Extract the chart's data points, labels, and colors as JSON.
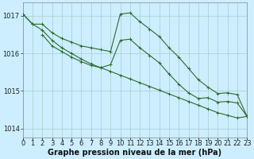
{
  "background_color": "#cceeff",
  "grid_color": "#aacccc",
  "line_color": "#2d6a2d",
  "xlabel": "Graphe pression niveau de la mer (hPa)",
  "xlabel_fontsize": 7,
  "tick_fontsize": 6,
  "ylabel_ticks": [
    1014,
    1015,
    1016,
    1017
  ],
  "xlim": [
    0,
    23
  ],
  "ylim": [
    1013.75,
    1017.35
  ],
  "line1_x": [
    0,
    1,
    2,
    3,
    4,
    5,
    6,
    7,
    8,
    9,
    10,
    11,
    12,
    13,
    14,
    15,
    16,
    17,
    18,
    19,
    20,
    21,
    22,
    23
  ],
  "line1_y": [
    1017.05,
    1016.78,
    1016.78,
    1016.55,
    1016.4,
    1016.3,
    1016.2,
    1016.15,
    1016.1,
    1016.05,
    1017.05,
    1017.08,
    1016.85,
    1016.65,
    1016.45,
    1016.15,
    1015.9,
    1015.6,
    1015.3,
    1015.1,
    1014.93,
    1014.95,
    1014.9,
    1014.32
  ],
  "line2_x": [
    2,
    3,
    4,
    5,
    6,
    7,
    8,
    9,
    10,
    11,
    12,
    13,
    14,
    15,
    16,
    17,
    18,
    19,
    20,
    21,
    22,
    23
  ],
  "line2_y": [
    1016.5,
    1016.2,
    1016.05,
    1015.9,
    1015.78,
    1015.68,
    1015.62,
    1015.7,
    1016.35,
    1016.38,
    1016.15,
    1015.95,
    1015.75,
    1015.45,
    1015.18,
    1014.95,
    1014.8,
    1014.82,
    1014.7,
    1014.72,
    1014.68,
    1014.32
  ],
  "line3_x": [
    0,
    1,
    2,
    3,
    4,
    5,
    6,
    7,
    8,
    9,
    10,
    11,
    12,
    13,
    14,
    15,
    16,
    17,
    18,
    19,
    20,
    21,
    22,
    23
  ],
  "line3_y": [
    1017.05,
    1016.78,
    1016.62,
    1016.35,
    1016.15,
    1016.0,
    1015.85,
    1015.72,
    1015.62,
    1015.52,
    1015.42,
    1015.32,
    1015.22,
    1015.12,
    1015.02,
    1014.92,
    1014.82,
    1014.72,
    1014.62,
    1014.52,
    1014.42,
    1014.35,
    1014.28,
    1014.32
  ],
  "xtick_labels": [
    "0",
    "1",
    "2",
    "3",
    "4",
    "5",
    "6",
    "7",
    "8",
    "9",
    "10",
    "11",
    "12",
    "13",
    "14",
    "15",
    "16",
    "17",
    "18",
    "19",
    "20",
    "21",
    "22",
    "23"
  ]
}
